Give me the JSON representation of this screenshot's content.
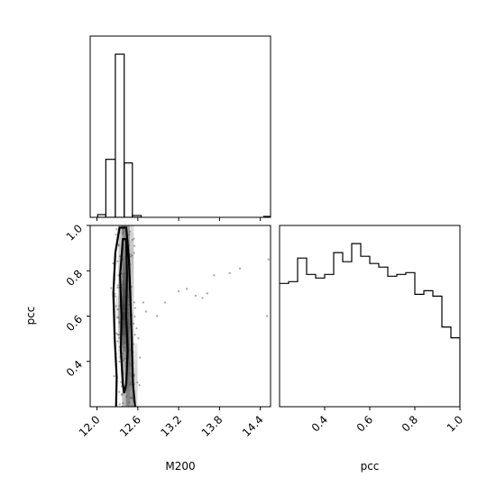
{
  "chart_data": [
    {
      "panel": "M200 marginal",
      "type": "histogram",
      "xlim": [
        11.9,
        14.55
      ],
      "ylim": [
        0,
        1.0
      ],
      "bins": [
        [
          11.9,
          12.01,
          0.0
        ],
        [
          12.01,
          12.13,
          0.015
        ],
        [
          12.13,
          12.27,
          0.32
        ],
        [
          12.27,
          12.4,
          0.9
        ],
        [
          12.4,
          12.52,
          0.3
        ],
        [
          12.52,
          12.65,
          0.01
        ],
        [
          12.65,
          14.55,
          0.0
        ]
      ],
      "tail_bin": [
        14.45,
        14.55,
        0.005
      ]
    },
    {
      "panel": "M200 vs pcc",
      "type": "heatmap",
      "xlabel": "M200",
      "ylabel": "pcc",
      "xlim": [
        11.9,
        14.55
      ],
      "ylim": [
        0.2,
        1.0
      ],
      "xticks": [
        "12.0",
        "12.6",
        "13.2",
        "13.8",
        "14.4"
      ],
      "xtick_values": [
        12.0,
        12.6,
        13.2,
        13.8,
        14.4
      ],
      "yticks": [
        "0.4",
        "0.6",
        "0.8",
        "1.0"
      ],
      "ytick_values": [
        0.4,
        0.6,
        0.8,
        1.0
      ],
      "contour_outer": [
        [
          12.28,
          0.2
        ],
        [
          12.29,
          0.33
        ],
        [
          12.26,
          0.5
        ],
        [
          12.24,
          0.7
        ],
        [
          12.27,
          0.88
        ],
        [
          12.33,
          0.99
        ],
        [
          12.43,
          0.99
        ],
        [
          12.47,
          0.85
        ],
        [
          12.49,
          0.7
        ],
        [
          12.51,
          0.5
        ],
        [
          12.53,
          0.3
        ],
        [
          12.56,
          0.2
        ]
      ],
      "contour_inner": [
        [
          12.38,
          0.3
        ],
        [
          12.35,
          0.45
        ],
        [
          12.36,
          0.6
        ],
        [
          12.34,
          0.78
        ],
        [
          12.38,
          0.94
        ],
        [
          12.43,
          0.94
        ],
        [
          12.44,
          0.78
        ],
        [
          12.43,
          0.6
        ],
        [
          12.45,
          0.45
        ],
        [
          12.43,
          0.3
        ],
        [
          12.4,
          0.26
        ]
      ],
      "outliers": [
        [
          13.2,
          0.71
        ],
        [
          13.32,
          0.72
        ],
        [
          13.45,
          0.69
        ],
        [
          13.55,
          0.68
        ],
        [
          13.62,
          0.7
        ],
        [
          13.72,
          0.78
        ],
        [
          13.95,
          0.79
        ],
        [
          14.1,
          0.81
        ],
        [
          14.52,
          0.85
        ],
        [
          14.5,
          0.6
        ],
        [
          12.88,
          0.6
        ],
        [
          12.68,
          0.66
        ],
        [
          12.72,
          0.62
        ],
        [
          13.0,
          0.66
        ]
      ]
    },
    {
      "panel": "pcc marginal",
      "type": "histogram",
      "xlabel": "pcc",
      "xlim": [
        0.2,
        1.0
      ],
      "ylim": [
        0,
        1.0
      ],
      "xticks": [
        "0.4",
        "0.6",
        "0.8",
        "1.0"
      ],
      "xtick_values": [
        0.4,
        0.6,
        0.8,
        1.0
      ],
      "bin_edges": [
        0.2,
        0.24,
        0.28,
        0.32,
        0.36,
        0.4,
        0.44,
        0.48,
        0.52,
        0.56,
        0.6,
        0.64,
        0.68,
        0.72,
        0.76,
        0.8,
        0.84,
        0.88,
        0.92,
        0.96,
        1.0
      ],
      "values": [
        0.68,
        0.69,
        0.82,
        0.73,
        0.71,
        0.73,
        0.85,
        0.8,
        0.9,
        0.83,
        0.79,
        0.77,
        0.72,
        0.73,
        0.74,
        0.62,
        0.64,
        0.61,
        0.44,
        0.38
      ]
    }
  ]
}
